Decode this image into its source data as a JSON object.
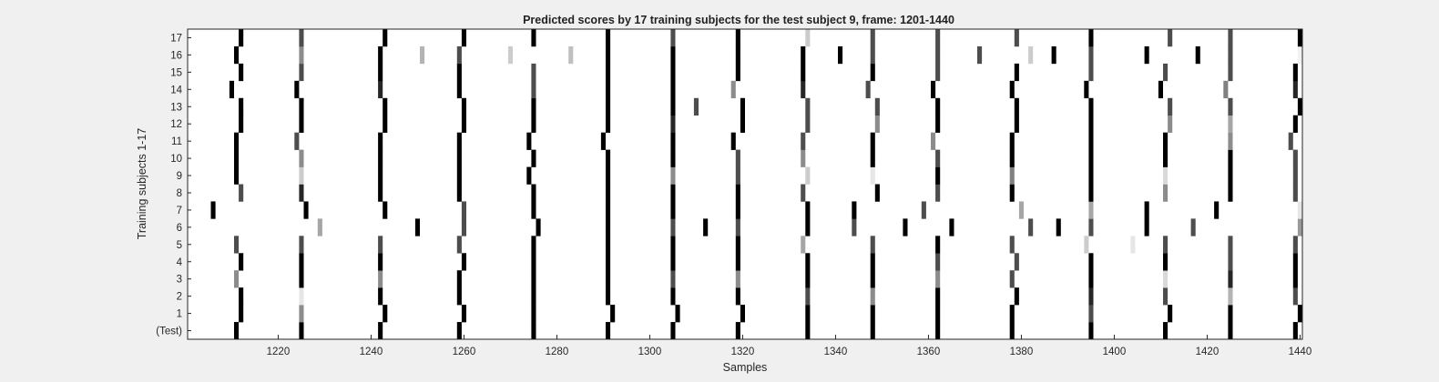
{
  "chart_data": {
    "type": "heatmap",
    "title": "Predicted scores by 17 training subjects for the test subject 9, frame: 1201-1440",
    "xlabel": "Samples",
    "ylabel": "Training subjects 1-17",
    "xlim": [
      1201,
      1440
    ],
    "x_ticks": [
      1220,
      1240,
      1260,
      1280,
      1300,
      1320,
      1340,
      1360,
      1380,
      1400,
      1420,
      1440
    ],
    "row_labels": [
      "(Test)",
      "1",
      "2",
      "3",
      "4",
      "5",
      "6",
      "7",
      "8",
      "9",
      "10",
      "11",
      "12",
      "13",
      "14",
      "15",
      "16",
      "17"
    ],
    "colormap": "gray (white = 0, black = 1)",
    "background_color": "#ffffff",
    "note": "Each row lists marks as [sample, score], score 0..1 (1 = black).",
    "rows": [
      {
        "label": "(Test)",
        "marks": [
          [
            1211,
            1
          ],
          [
            1225,
            1
          ],
          [
            1242,
            1
          ],
          [
            1259,
            1
          ],
          [
            1275,
            1
          ],
          [
            1291,
            1
          ],
          [
            1305,
            1
          ],
          [
            1319,
            1
          ],
          [
            1334,
            1
          ],
          [
            1348,
            1
          ],
          [
            1362,
            1
          ],
          [
            1378,
            1
          ],
          [
            1395,
            1
          ],
          [
            1411,
            1
          ],
          [
            1425,
            1
          ],
          [
            1439,
            1
          ]
        ]
      },
      {
        "label": "1",
        "marks": [
          [
            1212,
            1
          ],
          [
            1225,
            0.45
          ],
          [
            1243,
            1
          ],
          [
            1260,
            1
          ],
          [
            1275,
            1
          ],
          [
            1292,
            1
          ],
          [
            1306,
            1
          ],
          [
            1320,
            1
          ],
          [
            1334,
            1
          ],
          [
            1348,
            1
          ],
          [
            1362,
            1
          ],
          [
            1378,
            1
          ],
          [
            1395,
            0.7
          ],
          [
            1412,
            1
          ],
          [
            1425,
            1
          ],
          [
            1440,
            1
          ]
        ]
      },
      {
        "label": "2",
        "marks": [
          [
            1212,
            1
          ],
          [
            1225,
            0.1
          ],
          [
            1242,
            1
          ],
          [
            1259,
            1
          ],
          [
            1275,
            1
          ],
          [
            1291,
            1
          ],
          [
            1305,
            1
          ],
          [
            1319,
            1
          ],
          [
            1334,
            0.7
          ],
          [
            1348,
            0.45
          ],
          [
            1362,
            1
          ],
          [
            1379,
            1
          ],
          [
            1395,
            0.85
          ],
          [
            1411,
            0.7
          ],
          [
            1425,
            0.3
          ],
          [
            1439,
            0.7
          ]
        ]
      },
      {
        "label": "3",
        "marks": [
          [
            1211,
            0.45
          ],
          [
            1225,
            1
          ],
          [
            1242,
            0.45
          ],
          [
            1259,
            1
          ],
          [
            1275,
            1
          ],
          [
            1291,
            1
          ],
          [
            1305,
            0.7
          ],
          [
            1319,
            0.45
          ],
          [
            1334,
            1
          ],
          [
            1348,
            1
          ],
          [
            1362,
            0.45
          ],
          [
            1378,
            0.7
          ],
          [
            1395,
            1
          ],
          [
            1411,
            0.15
          ],
          [
            1425,
            0.85
          ],
          [
            1439,
            1
          ]
        ]
      },
      {
        "label": "4",
        "marks": [
          [
            1212,
            1
          ],
          [
            1225,
            1
          ],
          [
            1242,
            1
          ],
          [
            1260,
            1
          ],
          [
            1275,
            1
          ],
          [
            1291,
            1
          ],
          [
            1305,
            1
          ],
          [
            1319,
            1
          ],
          [
            1334,
            1
          ],
          [
            1348,
            1
          ],
          [
            1362,
            0.7
          ],
          [
            1379,
            0.7
          ],
          [
            1395,
            1
          ],
          [
            1411,
            1
          ],
          [
            1425,
            0.7
          ],
          [
            1439,
            1
          ]
        ]
      },
      {
        "label": "5",
        "marks": [
          [
            1211,
            0.7
          ],
          [
            1225,
            0.7
          ],
          [
            1242,
            0.7
          ],
          [
            1259,
            0.7
          ],
          [
            1275,
            1
          ],
          [
            1291,
            1
          ],
          [
            1305,
            1
          ],
          [
            1319,
            1
          ],
          [
            1333,
            0.35
          ],
          [
            1348,
            0.7
          ],
          [
            1362,
            1
          ],
          [
            1378,
            0.7
          ],
          [
            1394,
            0.2
          ],
          [
            1404,
            0.1
          ],
          [
            1411,
            0.7
          ],
          [
            1425,
            0.7
          ],
          [
            1439,
            0.7
          ]
        ]
      },
      {
        "label": "6",
        "marks": [
          [
            1229,
            0.35
          ],
          [
            1250,
            1
          ],
          [
            1260,
            0.7
          ],
          [
            1276,
            1
          ],
          [
            1291,
            1
          ],
          [
            1305,
            0.7
          ],
          [
            1312,
            1
          ],
          [
            1319,
            0.7
          ],
          [
            1334,
            1
          ],
          [
            1344,
            0.7
          ],
          [
            1355,
            1
          ],
          [
            1365,
            1
          ],
          [
            1382,
            0.7
          ],
          [
            1388,
            1
          ],
          [
            1395,
            0.7
          ],
          [
            1407,
            1
          ],
          [
            1417,
            0.7
          ],
          [
            1440,
            0.4
          ]
        ]
      },
      {
        "label": "7",
        "marks": [
          [
            1206,
            1
          ],
          [
            1226,
            1
          ],
          [
            1243,
            1
          ],
          [
            1260,
            0.7
          ],
          [
            1275,
            1
          ],
          [
            1291,
            1
          ],
          [
            1305,
            1
          ],
          [
            1319,
            1
          ],
          [
            1334,
            1
          ],
          [
            1344,
            1
          ],
          [
            1359,
            0.7
          ],
          [
            1380,
            0.35
          ],
          [
            1395,
            0.35
          ],
          [
            1407,
            1
          ],
          [
            1422,
            1
          ],
          [
            1440,
            0.1
          ]
        ]
      },
      {
        "label": "8",
        "marks": [
          [
            1212,
            0.7
          ],
          [
            1225,
            0.85
          ],
          [
            1242,
            1
          ],
          [
            1259,
            1
          ],
          [
            1275,
            1
          ],
          [
            1291,
            1
          ],
          [
            1305,
            1
          ],
          [
            1319,
            1
          ],
          [
            1333,
            0.7
          ],
          [
            1349,
            1
          ],
          [
            1362,
            0.7
          ],
          [
            1378,
            1
          ],
          [
            1395,
            1
          ],
          [
            1411,
            0.45
          ],
          [
            1425,
            1
          ],
          [
            1439,
            0.7
          ]
        ]
      },
      {
        "label": "9",
        "marks": [
          [
            1211,
            1
          ],
          [
            1225,
            0.2
          ],
          [
            1242,
            1
          ],
          [
            1259,
            1
          ],
          [
            1274,
            1
          ],
          [
            1291,
            1
          ],
          [
            1305,
            0.45
          ],
          [
            1319,
            0.7
          ],
          [
            1334,
            0.2
          ],
          [
            1348,
            0.1
          ],
          [
            1362,
            1
          ],
          [
            1378,
            0.5
          ],
          [
            1395,
            1
          ],
          [
            1411,
            0.15
          ],
          [
            1425,
            1
          ],
          [
            1439,
            0.7
          ]
        ]
      },
      {
        "label": "10",
        "marks": [
          [
            1211,
            1
          ],
          [
            1225,
            0.45
          ],
          [
            1242,
            1
          ],
          [
            1259,
            1
          ],
          [
            1275,
            1
          ],
          [
            1291,
            1
          ],
          [
            1305,
            1
          ],
          [
            1319,
            0.7
          ],
          [
            1333,
            0.45
          ],
          [
            1348,
            1
          ],
          [
            1362,
            0.7
          ],
          [
            1378,
            1
          ],
          [
            1395,
            1
          ],
          [
            1411,
            1
          ],
          [
            1425,
            1
          ],
          [
            1439,
            0.7
          ]
        ]
      },
      {
        "label": "11",
        "marks": [
          [
            1211,
            1
          ],
          [
            1224,
            0.7
          ],
          [
            1242,
            1
          ],
          [
            1259,
            1
          ],
          [
            1274,
            1
          ],
          [
            1290,
            1
          ],
          [
            1305,
            1
          ],
          [
            1318,
            1
          ],
          [
            1333,
            0.7
          ],
          [
            1348,
            1
          ],
          [
            1361,
            0.45
          ],
          [
            1378,
            1
          ],
          [
            1395,
            1
          ],
          [
            1411,
            1
          ],
          [
            1425,
            0.45
          ],
          [
            1438,
            0.7
          ]
        ]
      },
      {
        "label": "12",
        "marks": [
          [
            1212,
            1
          ],
          [
            1225,
            1
          ],
          [
            1243,
            1
          ],
          [
            1260,
            1
          ],
          [
            1275,
            1
          ],
          [
            1291,
            1
          ],
          [
            1305,
            0.85
          ],
          [
            1320,
            1
          ],
          [
            1334,
            0.7
          ],
          [
            1349,
            0.45
          ],
          [
            1362,
            1
          ],
          [
            1379,
            1
          ],
          [
            1395,
            1
          ],
          [
            1412,
            0.45
          ],
          [
            1425,
            0.35
          ],
          [
            1439,
            1
          ]
        ]
      },
      {
        "label": "13",
        "marks": [
          [
            1212,
            1
          ],
          [
            1225,
            1
          ],
          [
            1243,
            1
          ],
          [
            1260,
            1
          ],
          [
            1275,
            1
          ],
          [
            1291,
            1
          ],
          [
            1305,
            1
          ],
          [
            1310,
            0.7
          ],
          [
            1320,
            1
          ],
          [
            1334,
            0.7
          ],
          [
            1349,
            0.7
          ],
          [
            1362,
            1
          ],
          [
            1379,
            1
          ],
          [
            1395,
            1
          ],
          [
            1412,
            0.7
          ],
          [
            1425,
            0.7
          ],
          [
            1440,
            1
          ]
        ]
      },
      {
        "label": "14",
        "marks": [
          [
            1210,
            1
          ],
          [
            1224,
            1
          ],
          [
            1242,
            0.85
          ],
          [
            1259,
            1
          ],
          [
            1275,
            0.7
          ],
          [
            1291,
            1
          ],
          [
            1305,
            1
          ],
          [
            1318,
            0.45
          ],
          [
            1333,
            0.85
          ],
          [
            1347,
            0.7
          ],
          [
            1361,
            1
          ],
          [
            1378,
            1
          ],
          [
            1394,
            1
          ],
          [
            1410,
            1
          ],
          [
            1424,
            0.5
          ],
          [
            1439,
            0.85
          ]
        ]
      },
      {
        "label": "15",
        "marks": [
          [
            1212,
            1
          ],
          [
            1225,
            0.7
          ],
          [
            1242,
            1
          ],
          [
            1259,
            1
          ],
          [
            1275,
            0.7
          ],
          [
            1291,
            1
          ],
          [
            1305,
            1
          ],
          [
            1319,
            1
          ],
          [
            1333,
            1
          ],
          [
            1348,
            1
          ],
          [
            1362,
            0.7
          ],
          [
            1379,
            1
          ],
          [
            1395,
            0.7
          ],
          [
            1411,
            0.7
          ],
          [
            1425,
            0.7
          ],
          [
            1439,
            1
          ]
        ]
      },
      {
        "label": "16",
        "marks": [
          [
            1211,
            1
          ],
          [
            1225,
            0.45
          ],
          [
            1242,
            1
          ],
          [
            1251,
            0.3
          ],
          [
            1259,
            0.7
          ],
          [
            1270,
            0.2
          ],
          [
            1283,
            0.25
          ],
          [
            1291,
            1
          ],
          [
            1305,
            1
          ],
          [
            1319,
            1
          ],
          [
            1333,
            1
          ],
          [
            1341,
            1
          ],
          [
            1348,
            0.7
          ],
          [
            1362,
            0.7
          ],
          [
            1371,
            0.7
          ],
          [
            1382,
            0.2
          ],
          [
            1387,
            1
          ],
          [
            1395,
            0.7
          ],
          [
            1407,
            1
          ],
          [
            1418,
            1
          ],
          [
            1425,
            0.7
          ],
          [
            1440,
            0.05
          ]
        ]
      },
      {
        "label": "17",
        "marks": [
          [
            1212,
            1
          ],
          [
            1225,
            0.7
          ],
          [
            1243,
            1
          ],
          [
            1260,
            1
          ],
          [
            1275,
            1
          ],
          [
            1291,
            1
          ],
          [
            1305,
            0.7
          ],
          [
            1319,
            1
          ],
          [
            1334,
            0.2
          ],
          [
            1348,
            0.7
          ],
          [
            1362,
            0.7
          ],
          [
            1379,
            0.7
          ],
          [
            1395,
            1
          ],
          [
            1412,
            0.7
          ],
          [
            1425,
            0.7
          ],
          [
            1440,
            1
          ]
        ]
      }
    ]
  }
}
